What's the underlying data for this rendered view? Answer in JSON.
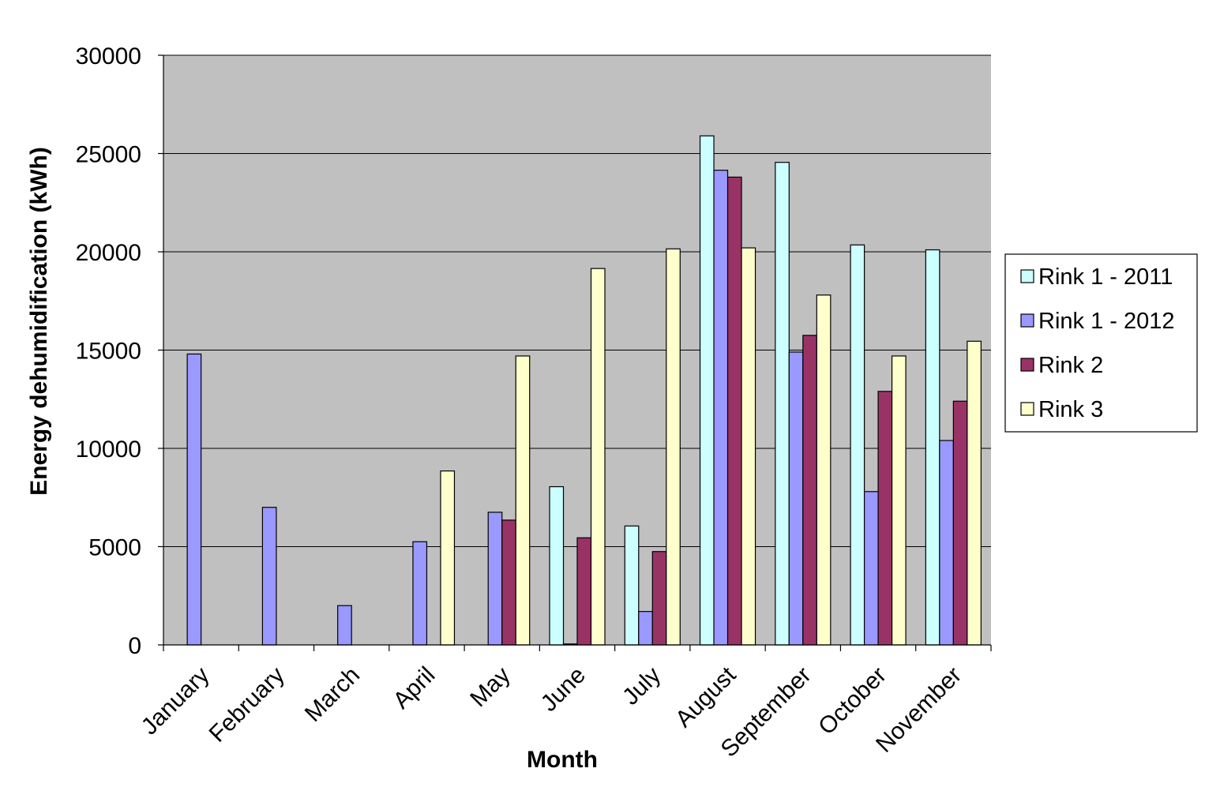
{
  "chart_data": {
    "type": "bar",
    "title": "",
    "xlabel": "Month",
    "ylabel": "Energy dehumidification (kWh)",
    "ylim": [
      0,
      30000
    ],
    "yticks": [
      0,
      5000,
      10000,
      15000,
      20000,
      25000,
      30000
    ],
    "grid": true,
    "legend_position": "right",
    "plot_background": "#C0C0C0",
    "categories": [
      "January",
      "February",
      "March",
      "April",
      "May",
      "June",
      "July",
      "August",
      "September",
      "October",
      "November"
    ],
    "series": [
      {
        "name": "Rink 1 - 2011",
        "color": "#CCFFFF",
        "values": [
          null,
          null,
          null,
          null,
          null,
          8050,
          6050,
          25900,
          24550,
          20350,
          20100
        ]
      },
      {
        "name": "Rink 1 - 2012",
        "color": "#9999FF",
        "values": [
          14800,
          7000,
          2000,
          5250,
          6750,
          50,
          1700,
          24150,
          14900,
          7800,
          10400
        ]
      },
      {
        "name": "Rink 2",
        "color": "#993366",
        "values": [
          null,
          null,
          null,
          null,
          6350,
          5450,
          4750,
          23800,
          15750,
          12900,
          12400
        ]
      },
      {
        "name": "Rink 3",
        "color": "#FFFFCC",
        "values": [
          null,
          null,
          null,
          8850,
          14700,
          19150,
          20150,
          20200,
          17800,
          14700,
          15450
        ]
      }
    ]
  }
}
